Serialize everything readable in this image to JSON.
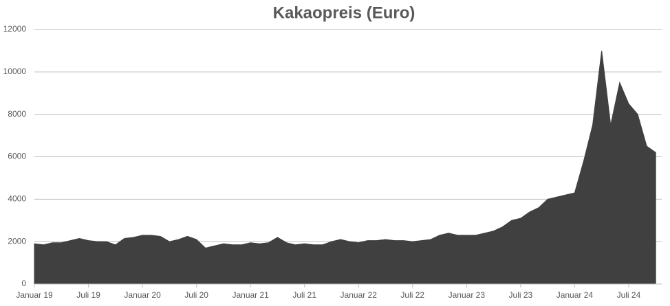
{
  "chart_data": {
    "type": "area",
    "title": "Kakaopreis (Euro)",
    "categories": [
      "Januar 19",
      null,
      null,
      null,
      null,
      null,
      "Juli 19",
      null,
      null,
      null,
      null,
      null,
      "Januar 20",
      null,
      null,
      null,
      null,
      null,
      "Juli 20",
      null,
      null,
      null,
      null,
      null,
      "Januar 21",
      null,
      null,
      null,
      null,
      null,
      "Juli 21",
      null,
      null,
      null,
      null,
      null,
      "Januar 22",
      null,
      null,
      null,
      null,
      null,
      "Juli 22",
      null,
      null,
      null,
      null,
      null,
      "Januar 23",
      null,
      null,
      null,
      null,
      null,
      "Juli 23",
      null,
      null,
      null,
      null,
      null,
      "Januar 24",
      null,
      null,
      null,
      null,
      null,
      "Juli 24",
      null,
      null,
      null
    ],
    "values": [
      1900,
      1850,
      1950,
      1950,
      2050,
      2150,
      2050,
      2000,
      2000,
      1850,
      2150,
      2200,
      2300,
      2300,
      2250,
      2000,
      2100,
      2250,
      2100,
      1700,
      1800,
      1900,
      1850,
      1850,
      1950,
      1900,
      1950,
      2200,
      1950,
      1850,
      1900,
      1850,
      1850,
      2000,
      2100,
      2000,
      1950,
      2050,
      2050,
      2100,
      2050,
      2050,
      2000,
      2050,
      2100,
      2300,
      2400,
      2300,
      2300,
      2300,
      2400,
      2500,
      2700,
      3000,
      3100,
      3400,
      3600,
      4000,
      4100,
      4200,
      4300,
      5800,
      7500,
      11000,
      7500,
      9500,
      8500,
      8000,
      6500,
      6200
    ],
    "color": "#404040",
    "ylim": [
      0,
      12000
    ],
    "yticks": [
      0,
      2000,
      4000,
      6000,
      8000,
      10000,
      12000
    ],
    "grid": true
  }
}
